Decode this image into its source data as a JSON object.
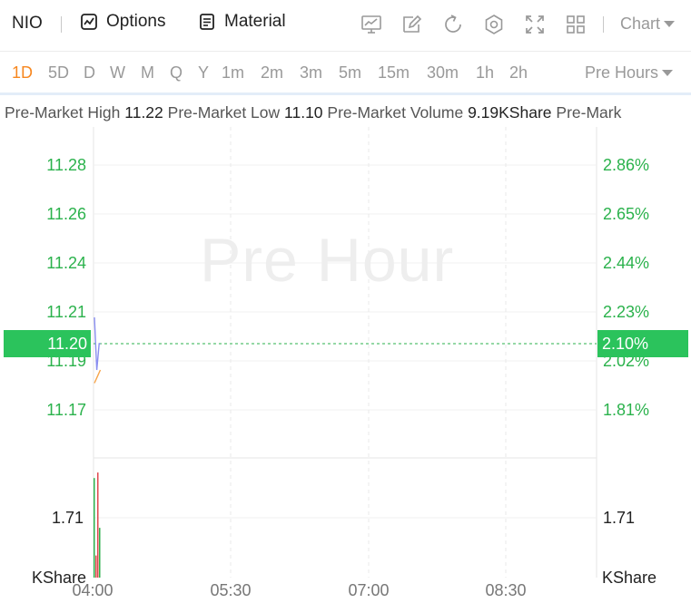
{
  "toolbar": {
    "symbol": "NIO",
    "options_label": "Options",
    "material_label": "Material",
    "chart_select_label": "Chart"
  },
  "intervals": [
    "1D",
    "5D",
    "D",
    "W",
    "M",
    "Q",
    "Y",
    "1m",
    "2m",
    "3m",
    "5m",
    "15m",
    "30m",
    "1h",
    "2h"
  ],
  "active_interval": "1D",
  "session_select_label": "Pre Hours",
  "info": {
    "high_label": "Pre-Market High",
    "high_value": "11.22",
    "low_label": "Pre-Market Low",
    "low_value": "11.10",
    "volume_label": "Pre-Market Volume",
    "volume_value": "9.19KShare",
    "truncated_label": "Pre-Mark"
  },
  "chart": {
    "watermark": "Pre Hour",
    "current_price": "11.20",
    "current_change": "2.10%",
    "price_ticks_left": [
      "11.28",
      "11.26",
      "11.24",
      "11.21",
      "11.19",
      "11.17"
    ],
    "price_ticks_right": [
      "2.86%",
      "2.65%",
      "2.44%",
      "2.23%",
      "2.02%",
      "1.81%"
    ],
    "volume_tick_left": "1.71",
    "volume_tick_right": "1.71",
    "volume_unit_left": "KShare",
    "volume_unit_right": "KShare",
    "x_ticks": [
      "04:00",
      "05:30",
      "07:00",
      "08:30"
    ],
    "colors": {
      "up": "#2bb24c",
      "down": "#e0484e",
      "price_tag": "#2bc35c",
      "line": "#8a8ef0",
      "avg_line": "#f7a54a",
      "active": "#f7871f"
    }
  },
  "chart_data": {
    "type": "line",
    "title": "",
    "xlabel": "",
    "ylabel": "",
    "categories": [
      "04:00",
      "05:30",
      "07:00",
      "08:30"
    ],
    "price_series": {
      "x": [
        "04:00",
        "04:01",
        "04:02",
        "04:03",
        "04:04",
        "04:05"
      ],
      "values": [
        11.22,
        11.2,
        11.18,
        11.19,
        11.2,
        11.2
      ]
    },
    "avg_series": {
      "x": [
        "04:00",
        "04:01",
        "04:02",
        "04:03",
        "04:04",
        "04:05"
      ],
      "values": [
        11.17,
        11.172,
        11.174,
        11.176,
        11.178,
        11.18
      ]
    },
    "volume_ylim": [
      0,
      2.0
    ],
    "price_ylim": [
      11.15,
      11.3
    ]
  }
}
